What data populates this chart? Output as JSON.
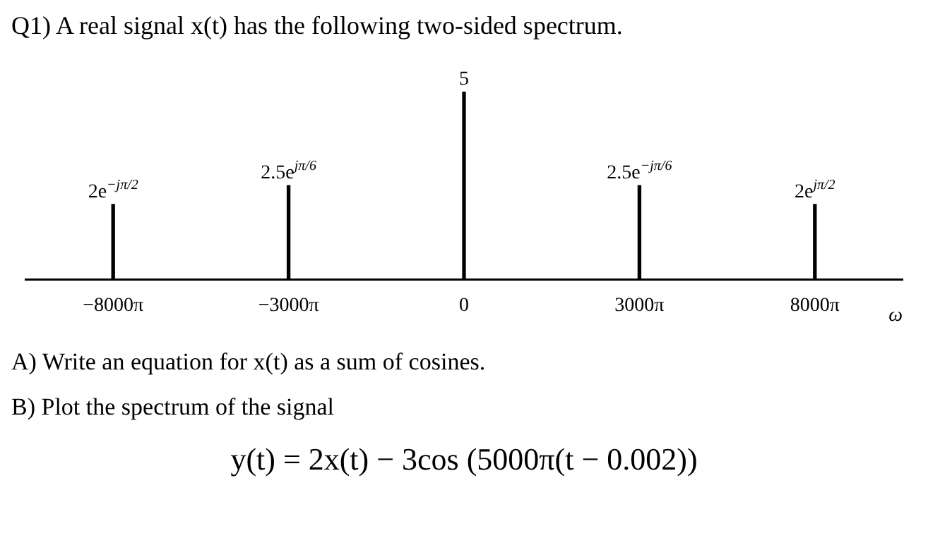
{
  "chart_data": {
    "type": "bar",
    "title": "Q1) A real signal x(t) has the following two-sided spectrum.",
    "categories": [
      "−8000π",
      "−3000π",
      "0",
      "3000π",
      "8000π"
    ],
    "values": [
      2,
      2.5,
      5,
      2.5,
      2
    ],
    "value_labels": [
      "2e$^{−jπ/2}$",
      "2.5e$^{jπ/6}$",
      "5",
      "2.5e$^{−jπ/6}$",
      "2e$^{jπ/2}$"
    ],
    "tick_labels": "x",
    "color": "#000000",
    "xlabel": "ω",
    "annotations": [
      "A) Write an equation for x(t) as a sum of cosines.",
      "B) Plot the spectrum of the signal",
      "y(t) = 2x(t) − 3cos (5000π(t − 0.002))"
    ]
  }
}
